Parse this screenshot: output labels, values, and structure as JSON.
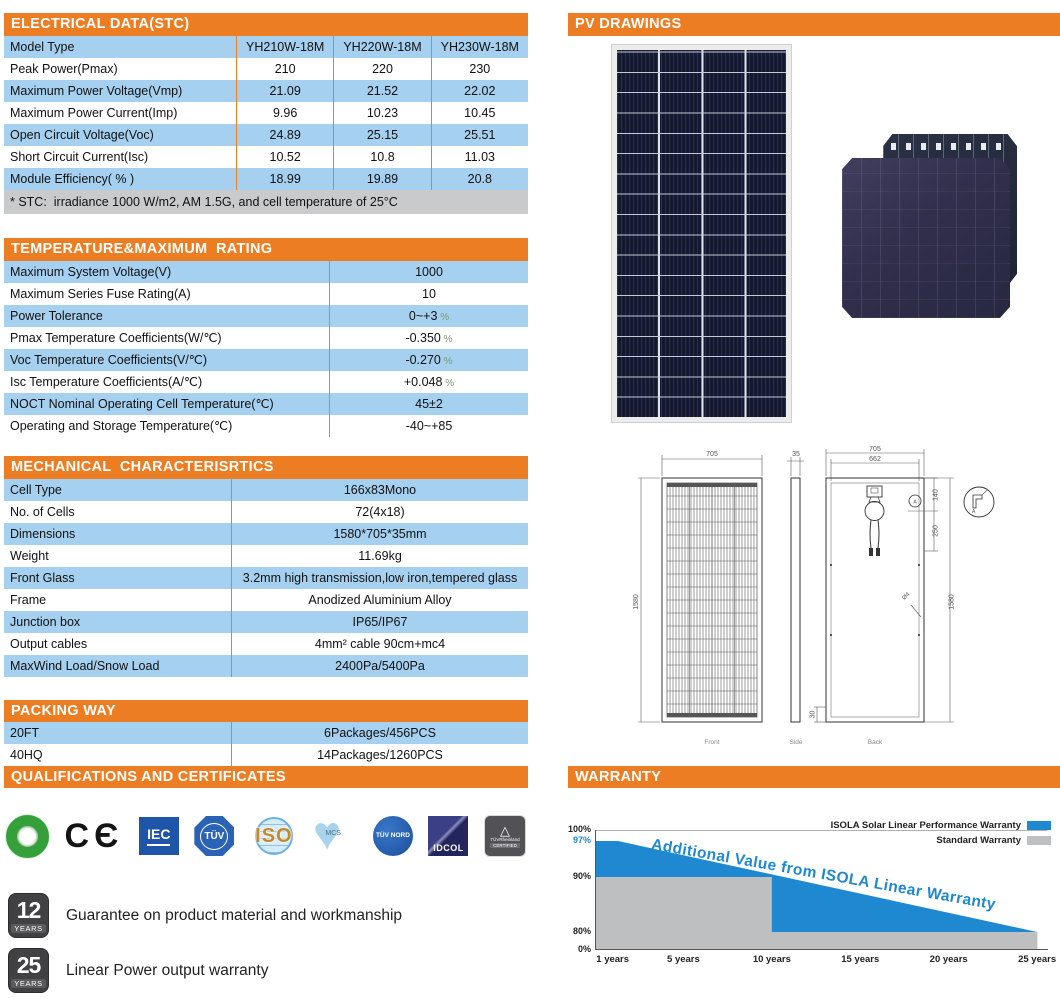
{
  "sections": {
    "electrical": {
      "title": "ELECTRICAL DATA(STC)",
      "rows": [
        [
          "Model Type",
          "YH210W-18M",
          "YH220W-18M",
          "YH230W-18M"
        ],
        [
          "Peak Power(Pmax)",
          "210",
          "220",
          "230"
        ],
        [
          "Maximum Power Voltage(Vmp)",
          "21.09",
          "21.52",
          "22.02"
        ],
        [
          "Maximum Power Current(Imp)",
          "9.96",
          "10.23",
          "10.45"
        ],
        [
          "Open Circuit Voltage(Voc)",
          "24.89",
          "25.15",
          "25.51"
        ],
        [
          "Short Circuit Current(Isc)",
          "10.52",
          "10.8",
          "11.03"
        ],
        [
          "Module Efficiency( % )",
          "18.99",
          "19.89",
          "20.8"
        ]
      ],
      "footnote": "* STC:  irradiance 1000 W/m2, AM 1.5G, and cell temperature of 25°C"
    },
    "temperature": {
      "title": "TEMPERATURE&MAXIMUM  RATING",
      "rows": [
        [
          "Maximum System Voltage(V)",
          "1000"
        ],
        [
          "Maximum Series Fuse Rating(A)",
          "10"
        ],
        [
          "Power Tolerance",
          "0~+3 %"
        ],
        [
          "Pmax Temperature Coefficients(W/℃)",
          "-0.350 %"
        ],
        [
          "Voc Temperature Coefficients(V/℃)",
          "-0.270 %"
        ],
        [
          "Isc Temperature Coefficients(A/℃)",
          "+0.048 %"
        ],
        [
          "NOCT Nominal Operating Cell Temperature(℃)",
          "45±2"
        ],
        [
          "Operating and Storage Temperature(℃)",
          "-40~+85"
        ]
      ]
    },
    "mechanical": {
      "title": "MECHANICAL  CHARACTERISRTICS",
      "rows": [
        [
          "Cell Type",
          "166x83Mono"
        ],
        [
          "No. of Cells",
          "72(4x18)"
        ],
        [
          "Dimensions",
          "1580*705*35mm"
        ],
        [
          "Weight",
          "11.69kg"
        ],
        [
          "Front Glass",
          "3.2mm high transmission,low iron,tempered glass"
        ],
        [
          "Frame",
          "Anodized Aluminium Alloy"
        ],
        [
          "Junction box",
          "IP65/IP67"
        ],
        [
          "Output cables",
          "4mm² cable 90cm+mc4"
        ],
        [
          "MaxWind Load/Snow Load",
          "2400Pa/5400Pa"
        ]
      ]
    },
    "packing": {
      "title": "PACKING WAY",
      "rows": [
        [
          "20FT",
          "6Packages/456PCS"
        ],
        [
          "40HQ",
          "14Packages/1260PCS"
        ]
      ]
    },
    "qualifications": {
      "title": "QUALIFICATIONS AND CERTIFICATES",
      "certificates": [
        {
          "id": "green-ring",
          "label": ""
        },
        {
          "id": "ce-mark",
          "label": "CЄ"
        },
        {
          "id": "iec",
          "label": "IEC"
        },
        {
          "id": "tuv-octagon",
          "label": "TÜV"
        },
        {
          "id": "iso",
          "label": "ISO"
        },
        {
          "id": "mcs",
          "label": "MCS"
        },
        {
          "id": "tuv-nord",
          "label": "TÜV NORD"
        },
        {
          "id": "idcol",
          "label": "IDCOL"
        },
        {
          "id": "tuv-rheinland",
          "label": "TÜVRheinland",
          "sub": "CERTIFIED"
        }
      ],
      "badges": [
        {
          "number": "12",
          "unit": "YEARS",
          "text": "Guarantee on product material and workmanship"
        },
        {
          "number": "25",
          "unit": "YEARS",
          "text": "Linear Power output warranty"
        }
      ]
    },
    "pv_drawings": {
      "title": "PV DRAWINGS",
      "dimensions": {
        "front_width": "705",
        "front_height": "1580",
        "side_thickness": "35",
        "back_width": "705",
        "back_inner_width": "662",
        "jbox_offset": "140",
        "cable_drop": "250",
        "back_height": "1580",
        "frame_bottom": "30",
        "hole_label": "Ø4",
        "detail_label": "A",
        "front_label": "Front",
        "side_label": "Side",
        "back_label": "Back"
      }
    },
    "warranty": {
      "title": "WARRANTY"
    }
  },
  "chart_data": {
    "type": "area",
    "annotation": "Additional Value from ISOLA Linear Warranty",
    "xlim": [
      0,
      25
    ],
    "ylim": [
      0,
      100
    ],
    "grid": false,
    "legend_position": "top-right",
    "y_scale_anchors": [
      [
        100,
        0
      ],
      [
        97,
        11
      ],
      [
        90,
        47
      ],
      [
        80,
        102
      ],
      [
        0,
        120
      ]
    ],
    "x_ticks": [
      {
        "value": 1,
        "label": "1 years"
      },
      {
        "value": 5,
        "label": "5 years"
      },
      {
        "value": 10,
        "label": "10 years"
      },
      {
        "value": 15,
        "label": "15 years"
      },
      {
        "value": 20,
        "label": "20 years"
      },
      {
        "value": 25,
        "label": "25 years"
      }
    ],
    "y_ticks": [
      {
        "value": 100,
        "label": "100%"
      },
      {
        "value": 97,
        "label": "97%",
        "color": "#1e88d0"
      },
      {
        "value": 90,
        "label": "90%"
      },
      {
        "value": 80,
        "label": "80%"
      },
      {
        "value": 0,
        "label": "0%"
      }
    ],
    "series": [
      {
        "name": "ISOLA Solar Linear Performance Warranty",
        "color": "#1E88D0",
        "points": [
          [
            0,
            97
          ],
          [
            1.3,
            97
          ],
          [
            25,
            80
          ]
        ]
      },
      {
        "name": "Standard Warranty",
        "color": "#BDBFC1",
        "points": [
          [
            0,
            90
          ],
          [
            10,
            90
          ],
          [
            10,
            80
          ],
          [
            25,
            80
          ]
        ]
      }
    ]
  },
  "colors": {
    "accent_orange": "#EC7D23",
    "row_blue": "#A5D0F0"
  }
}
